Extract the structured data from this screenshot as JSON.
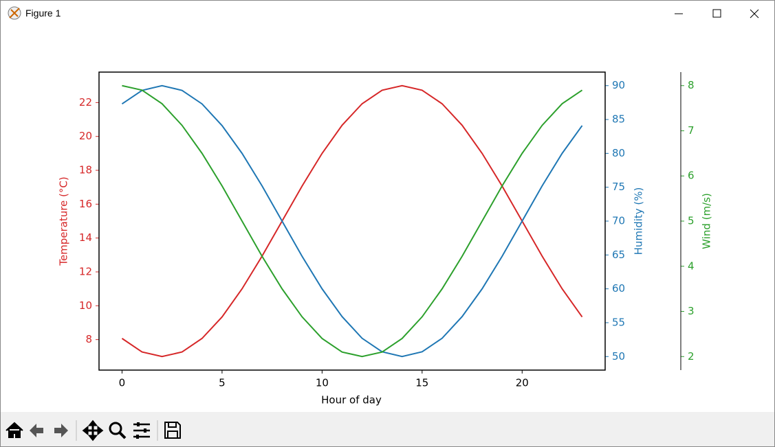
{
  "window": {
    "title": "Figure 1"
  },
  "chart_data": {
    "type": "line",
    "xlabel": "Hour of day",
    "x": [
      0,
      1,
      2,
      3,
      4,
      5,
      6,
      7,
      8,
      9,
      10,
      11,
      12,
      13,
      14,
      15,
      16,
      17,
      18,
      19,
      20,
      21,
      22,
      23
    ],
    "xlim": [
      -1.15,
      24.15
    ],
    "xticks": [
      0,
      5,
      10,
      15,
      20
    ],
    "ylim": [
      6.2,
      23.8
    ],
    "yticks": [
      8,
      10,
      12,
      14,
      16,
      18,
      20,
      22
    ],
    "y2lim": [
      48,
      92
    ],
    "y2ticks": [
      50,
      55,
      60,
      65,
      70,
      75,
      80,
      85,
      90
    ],
    "y3lim": [
      1.7,
      8.3
    ],
    "y3ticks": [
      2,
      3,
      4,
      5,
      6,
      7,
      8
    ],
    "series": [
      {
        "name": "Temperature (°C)",
        "color": "#d62728",
        "axis": "y",
        "values": [
          8.07,
          7.27,
          7,
          7.27,
          8.07,
          9.34,
          11,
          12.93,
          15,
          17.07,
          19,
          20.66,
          21.93,
          22.73,
          23,
          22.73,
          21.93,
          20.66,
          19,
          17.07,
          15,
          12.93,
          11,
          9.34
        ]
      },
      {
        "name": "Humidity (%)",
        "color": "#1f77b4",
        "axis": "y2",
        "values": [
          87.3,
          89.3,
          90,
          89.3,
          87.3,
          84.1,
          80,
          75.2,
          70,
          64.8,
          60,
          55.9,
          52.7,
          50.7,
          50,
          50.7,
          52.7,
          55.9,
          60,
          64.8,
          70,
          75.2,
          80,
          84.1
        ]
      },
      {
        "name": "Wind (m/s)",
        "color": "#2ca02c",
        "axis": "y3",
        "values": [
          8,
          7.9,
          7.6,
          7.12,
          6.5,
          5.78,
          5,
          4.22,
          3.5,
          2.88,
          2.4,
          2.1,
          2,
          2.1,
          2.4,
          2.88,
          3.5,
          4.22,
          5,
          5.78,
          6.5,
          7.12,
          7.6,
          7.9
        ]
      }
    ]
  }
}
